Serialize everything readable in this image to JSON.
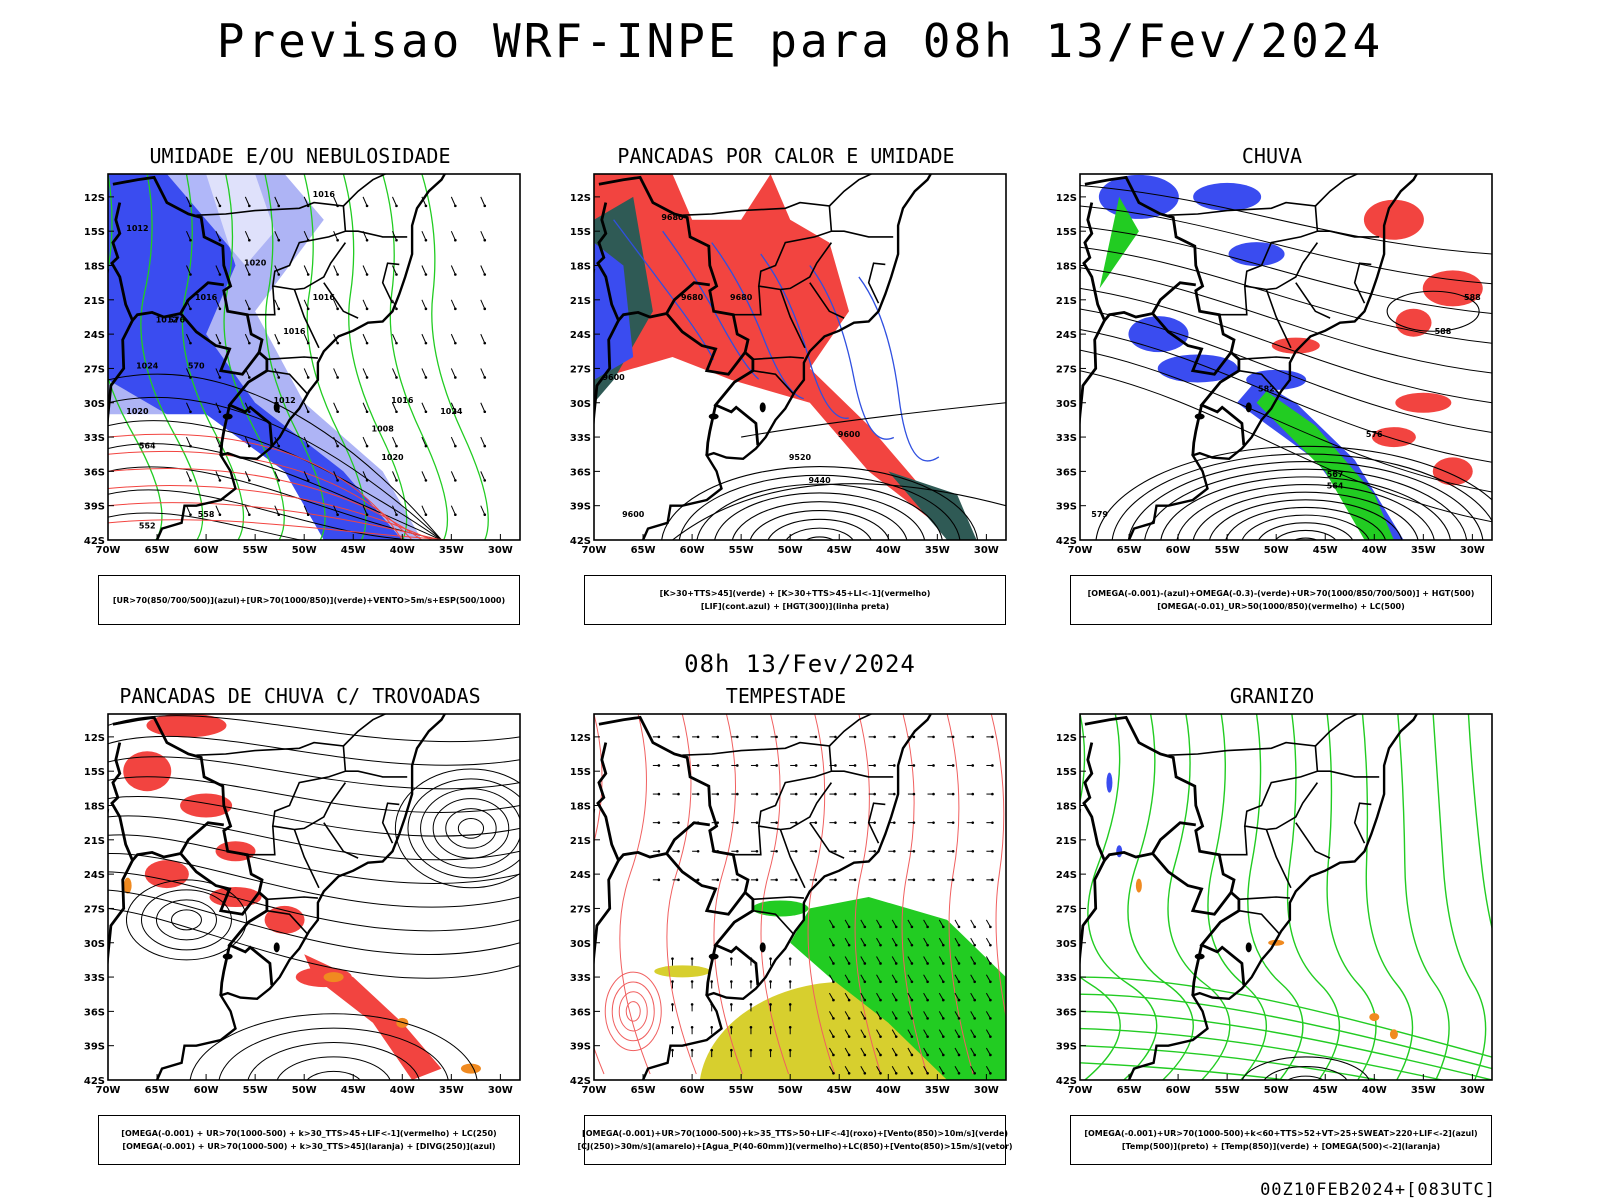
{
  "main_title": "Previsao WRF-INPE  para 08h 13/Fev/2024",
  "mid_title": "08h 13/Fev/2024",
  "footer": "00Z10FEB2024+[083UTC]",
  "axes": {
    "lat_labels": [
      "12S",
      "15S",
      "18S",
      "21S",
      "24S",
      "27S",
      "30S",
      "33S",
      "36S",
      "39S",
      "42S"
    ],
    "lon_labels": [
      "70W",
      "65W",
      "60W",
      "55W",
      "50W",
      "45W",
      "40W",
      "35W",
      "30W"
    ]
  },
  "colors": {
    "blue": "#3a4cf0",
    "light_blue": "#aeb4f5",
    "red": "#f24440",
    "green": "#22cc22",
    "orange": "#f08a20",
    "yellow": "#d7cf2e",
    "dark_teal": "#2f5a55",
    "contour_blue": "#3050e0"
  },
  "panels": [
    {
      "title": "UMIDADE E/OU NEBULOSIDADE",
      "legend": [
        "[UR>70(850/700/500)](azul)+[UR>70(1000/850)](verde)+VENTO>5m/s+ESP(500/1000)"
      ],
      "contour_labels": [
        "1016",
        "1012",
        "1020",
        "1016",
        "1016",
        "1012",
        "1016",
        "1024",
        "1020",
        "1012",
        "1016",
        "1008",
        "1020",
        "1024",
        "576",
        "570",
        "564",
        "558",
        "552"
      ]
    },
    {
      "title": "PANCADAS POR CALOR E UMIDADE",
      "legend": [
        "[K>30+TTS>45](verde) + [K>30+TTS>45+LI<-1](vermelho)",
        "[LIF](cont.azul) + [HGT(300)](linha preta)"
      ],
      "contour_labels": [
        "9680",
        "9680",
        "9680",
        "9600",
        "9600",
        "9520",
        "9440",
        "9600"
      ]
    },
    {
      "title": "CHUVA",
      "legend": [
        "[OMEGA(-0.001)-(azul)+OMEGA(-0.3)-(verde)+UR>70(1000/850/700/500)] + HGT(500)",
        "[OMEGA(-0.01)_UR>50(1000/850)(vermelho) + LC(500)"
      ],
      "contour_labels": [
        "588",
        "588",
        "582",
        "576",
        "567",
        "564",
        "579"
      ]
    },
    {
      "title": "PANCADAS DE CHUVA C/ TROVOADAS",
      "legend": [
        "[OMEGA(-0.001) + UR>70(1000-500) + k>30_TTS>45+LIF<-1](vermelho) + LC(250)",
        "[OMEGA(-0.001) + UR>70(1000-500) + k>30_TTS>45](laranja) + [DIVG(250)](azul)"
      ],
      "contour_labels": []
    },
    {
      "title": "TEMPESTADE",
      "legend": [
        "[OMEGA(-0.001)+UR>70(1000-500)+k>35_TTS>50+LIF<-4](roxo)+[Vento(850)>10m/s](verde)",
        "[CJ(250)>30m/s](amarelo)+[Agua_P(40-60mm)](vermelho)+LC(850)+[Vento(850)>15m/s](vetor)"
      ],
      "contour_labels": []
    },
    {
      "title": "GRANIZO",
      "legend": [
        "[OMEGA(-0.001)+UR>70(1000-500)+k<60+TTS>52+VT>25+SWEAT>220+LIF<-2](azul)",
        "[Temp(500)](preto) + [Temp(850)](verde) + [OMEGA(500)<-2](laranja)"
      ],
      "contour_labels": []
    }
  ]
}
